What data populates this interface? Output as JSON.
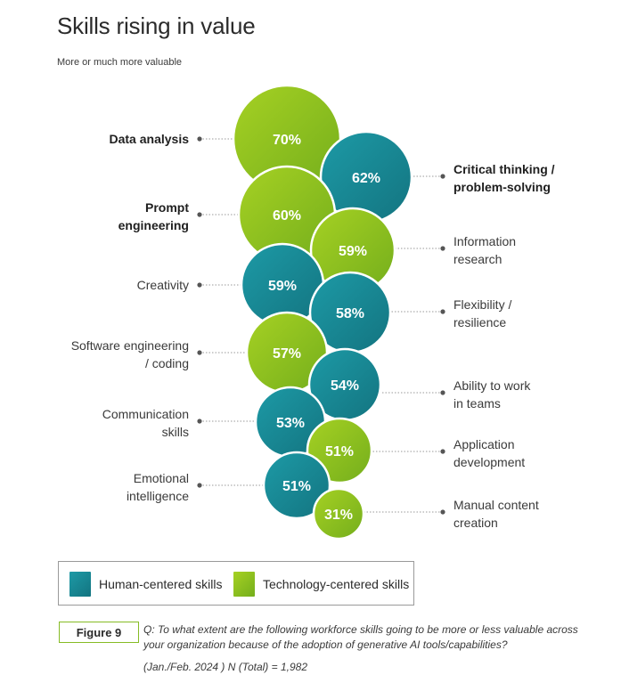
{
  "header": {
    "title": "Skills rising in value",
    "subtitle": "More or much more valuable"
  },
  "colors": {
    "human": "#1a8a96",
    "technology": "#8dc21f",
    "dotted_line": "#999999"
  },
  "chart_data": {
    "type": "bubble",
    "title": "Skills rising in value",
    "subtitle": "More or much more valuable",
    "series": [
      {
        "name": "Human-centered skills"
      },
      {
        "name": "Technology-centered skills"
      }
    ],
    "items": [
      {
        "label": "Data analysis",
        "value": 70,
        "value_label": "70%",
        "category": "Technology-centered skills",
        "side": "left",
        "bold": true
      },
      {
        "label": "Critical thinking / problem-solving",
        "value": 62,
        "value_label": "62%",
        "category": "Human-centered skills",
        "side": "right",
        "bold": true
      },
      {
        "label": "Prompt engineering",
        "value": 60,
        "value_label": "60%",
        "category": "Technology-centered skills",
        "side": "left",
        "bold": true
      },
      {
        "label": "Information research",
        "value": 59,
        "value_label": "59%",
        "category": "Technology-centered skills",
        "side": "right",
        "bold": false
      },
      {
        "label": "Creativity",
        "value": 59,
        "value_label": "59%",
        "category": "Human-centered skills",
        "side": "left",
        "bold": false
      },
      {
        "label": "Flexibility / resilience",
        "value": 58,
        "value_label": "58%",
        "category": "Human-centered skills",
        "side": "right",
        "bold": false
      },
      {
        "label": "Software engineering / coding",
        "value": 57,
        "value_label": "57%",
        "category": "Technology-centered skills",
        "side": "left",
        "bold": false
      },
      {
        "label": "Ability to work in teams",
        "value": 54,
        "value_label": "54%",
        "category": "Human-centered skills",
        "side": "right",
        "bold": false
      },
      {
        "label": "Communication skills",
        "value": 53,
        "value_label": "53%",
        "category": "Human-centered skills",
        "side": "left",
        "bold": false
      },
      {
        "label": "Application development",
        "value": 51,
        "value_label": "51%",
        "category": "Technology-centered skills",
        "side": "right",
        "bold": false
      },
      {
        "label": "Emotional intelligence",
        "value": 51,
        "value_label": "51%",
        "category": "Human-centered skills",
        "side": "left",
        "bold": false
      },
      {
        "label": "Manual content creation",
        "value": 31,
        "value_label": "31%",
        "category": "Technology-centered skills",
        "side": "right",
        "bold": false
      }
    ]
  },
  "legend": {
    "human_label": "Human-centered skills",
    "technology_label": "Technology-centered skills"
  },
  "figure": {
    "badge": "Figure 9",
    "question": "Q: To what extent are the following workforce skills going to be more or less valuable across your organization because of the adoption of generative AI tools/capabilities?",
    "note": "(Jan./Feb. 2024 ) N (Total) = 1,982"
  }
}
